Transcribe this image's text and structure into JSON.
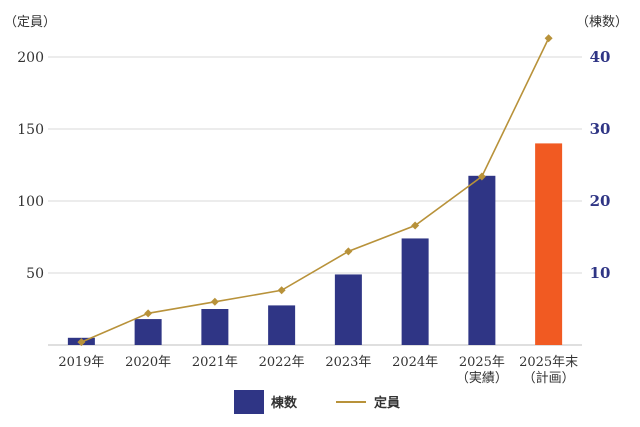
{
  "chart_data": {
    "type": "bar+line",
    "y_left_unit": "（定員）",
    "y_right_unit": "（棟数）",
    "y_left_ticks": [
      "200",
      "150",
      "100",
      "50"
    ],
    "y_right_ticks": [
      "40",
      "30",
      "20",
      "10"
    ],
    "y_left_range": [
      0,
      200
    ],
    "y_right_range": [
      0,
      40
    ],
    "categories": [
      {
        "line1": "2019年",
        "line2": ""
      },
      {
        "line1": "2020年",
        "line2": ""
      },
      {
        "line1": "2021年",
        "line2": ""
      },
      {
        "line1": "2022年",
        "line2": ""
      },
      {
        "line1": "2023年",
        "line2": ""
      },
      {
        "line1": "2024年",
        "line2": ""
      },
      {
        "line1": "2025年",
        "line2": "（実績）"
      },
      {
        "line1": "2025年末",
        "line2": "（計画）"
      }
    ],
    "series": [
      {
        "name": "棟数",
        "type": "bar",
        "axis": "right",
        "values": [
          1,
          3.6,
          5,
          5.5,
          9.8,
          14.8,
          23.5,
          28
        ],
        "colors": [
          "#2f3585",
          "#2f3585",
          "#2f3585",
          "#2f3585",
          "#2f3585",
          "#2f3585",
          "#2f3585",
          "#f15a22"
        ]
      },
      {
        "name": "定員",
        "type": "line",
        "axis": "left",
        "values": [
          2,
          22,
          30,
          38,
          65,
          83,
          117,
          213
        ],
        "color": "#b8923a"
      }
    ],
    "legend": [
      {
        "label": "棟数",
        "kind": "bar",
        "color": "#2f3585"
      },
      {
        "label": "定員",
        "kind": "line",
        "color": "#b8923a"
      }
    ],
    "grid": true,
    "legend_position": "bottom-center"
  }
}
